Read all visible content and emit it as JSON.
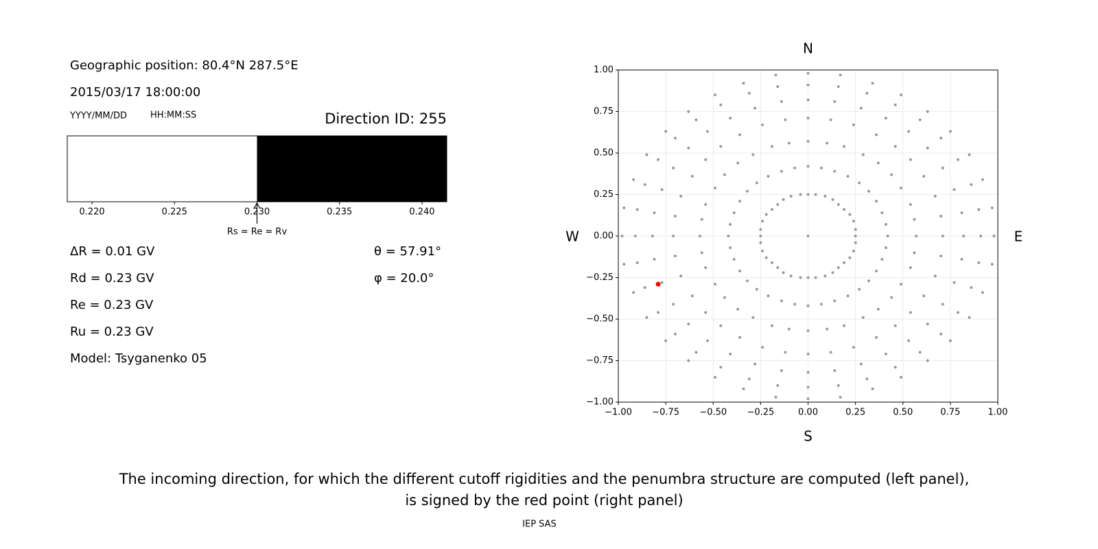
{
  "info": {
    "geo": "Geographic position: 80.4°N 287.5°E",
    "datetime": "2015/03/17 18:00:00",
    "date_format": "YYYY/MM/DD",
    "time_format": "HH:MM:SS",
    "direction": "Direction ID: 255",
    "dR": "ΔR = 0.01 GV",
    "Rd": "Rd = 0.23 GV",
    "Re": "Re = 0.23 GV",
    "Ru": "Ru = 0.23 GV",
    "theta": "θ = 57.91°",
    "phi": "φ = 20.0°",
    "model": "Model: Tsyganenko 05"
  },
  "caption": [
    "The incoming direction, for which the different cutoff rigidities and the penumbra structure are computed (left panel),",
    "is signed by the red point (right panel)"
  ],
  "footer": "IEP SAS",
  "chart_data": [
    {
      "type": "penumbra",
      "bins": [
        0.2185,
        0.23,
        0.2415
      ],
      "colors": [
        "#ffffff",
        "#000000"
      ],
      "xlim": [
        0.2185,
        0.2415
      ],
      "xticks": [
        {
          "value": 0.22,
          "label": "0.220"
        },
        {
          "value": 0.225,
          "label": "0.225"
        },
        {
          "value": 0.23,
          "label": "0.230"
        },
        {
          "value": 0.235,
          "label": "0.235"
        },
        {
          "value": 0.24,
          "label": "0.240"
        }
      ],
      "annotation": {
        "text": "Rs = Re = Rv",
        "x": 0.23
      }
    },
    {
      "type": "scatter",
      "xlim": [
        -1,
        1
      ],
      "ylim": [
        -1,
        1
      ],
      "grid": true,
      "compass": {
        "top": "N",
        "bottom": "S",
        "left": "W",
        "right": "E"
      },
      "xticks": [
        {
          "value": -1,
          "label": "−1.00"
        },
        {
          "value": -0.75,
          "label": "−0.75"
        },
        {
          "value": -0.5,
          "label": "−0.50"
        },
        {
          "value": -0.25,
          "label": "−0.25"
        },
        {
          "value": 0,
          "label": "0.00"
        },
        {
          "value": 0.25,
          "label": "0.25"
        },
        {
          "value": 0.5,
          "label": "0.50"
        },
        {
          "value": 0.75,
          "label": "0.75"
        },
        {
          "value": 1,
          "label": "1.00"
        }
      ],
      "yticks": [
        {
          "value": -1,
          "label": "−1.00"
        },
        {
          "value": -0.75,
          "label": "−0.75"
        },
        {
          "value": -0.5,
          "label": "−0.50"
        },
        {
          "value": -0.25,
          "label": "−0.25"
        },
        {
          "value": 0,
          "label": "0.00"
        },
        {
          "value": 0.25,
          "label": "0.25"
        },
        {
          "value": 0.5,
          "label": "0.50"
        },
        {
          "value": 0.75,
          "label": "0.75"
        },
        {
          "value": 1,
          "label": "1.00"
        }
      ],
      "series": [
        {
          "color": "#999999",
          "x": [
            0
          ],
          "values": [
            0
          ]
        },
        {
          "color": "#999999",
          "x": [
            0.25,
            0.25,
            0.24,
            0.22,
            0.19,
            0.16,
            0.13,
            0.09,
            0.04,
            0,
            -0.04,
            -0.09,
            -0.13,
            -0.16,
            -0.19,
            -0.22,
            -0.24,
            -0.25,
            -0.25,
            -0.25,
            -0.24,
            -0.22,
            -0.19,
            -0.16,
            -0.13,
            -0.09,
            -0.04,
            0,
            0.04,
            0.09,
            0.13,
            0.16,
            0.19,
            0.22,
            0.24,
            0.25
          ],
          "values": [
            0,
            0.04,
            0.09,
            0.13,
            0.16,
            0.19,
            0.22,
            0.24,
            0.25,
            0.25,
            0.25,
            0.24,
            0.22,
            0.19,
            0.16,
            0.13,
            0.09,
            0.04,
            0,
            -0.04,
            -0.09,
            -0.13,
            -0.16,
            -0.19,
            -0.22,
            -0.24,
            -0.25,
            -0.25,
            -0.25,
            -0.24,
            -0.22,
            -0.19,
            -0.16,
            -0.13,
            -0.09,
            -0.04
          ]
        },
        {
          "color": "#999999",
          "x": [
            0.42,
            0.41,
            0.39,
            0.36,
            0.32,
            0.27,
            0.21,
            0.14,
            0.07,
            0,
            -0.07,
            -0.14,
            -0.21,
            -0.27,
            -0.32,
            -0.36,
            -0.39,
            -0.41,
            -0.42,
            -0.41,
            -0.39,
            -0.36,
            -0.32,
            -0.27,
            -0.21,
            -0.14,
            -0.07,
            0,
            0.07,
            0.14,
            0.21,
            0.27,
            0.32,
            0.36,
            0.39,
            0.41
          ],
          "values": [
            0,
            0.07,
            0.14,
            0.21,
            0.27,
            0.32,
            0.36,
            0.39,
            0.41,
            0.42,
            0.41,
            0.39,
            0.36,
            0.32,
            0.27,
            0.21,
            0.14,
            0.07,
            0,
            -0.07,
            -0.14,
            -0.21,
            -0.27,
            -0.32,
            -0.36,
            -0.39,
            -0.41,
            -0.42,
            -0.41,
            -0.39,
            -0.36,
            -0.32,
            -0.27,
            -0.21,
            -0.14,
            -0.07
          ]
        },
        {
          "color": "#999999",
          "x": [
            0.57,
            0.56,
            0.54,
            0.49,
            0.44,
            0.37,
            0.29,
            0.19,
            0.1,
            0,
            -0.1,
            -0.19,
            -0.29,
            -0.37,
            -0.44,
            -0.49,
            -0.54,
            -0.56,
            -0.57,
            -0.56,
            -0.54,
            -0.49,
            -0.44,
            -0.37,
            -0.29,
            -0.19,
            -0.1,
            0,
            0.1,
            0.19,
            0.29,
            0.37,
            0.44,
            0.49,
            0.54,
            0.56
          ],
          "values": [
            0,
            0.1,
            0.19,
            0.29,
            0.37,
            0.44,
            0.49,
            0.54,
            0.56,
            0.57,
            0.56,
            0.54,
            0.49,
            0.44,
            0.37,
            0.29,
            0.19,
            0.1,
            0,
            -0.1,
            -0.19,
            -0.29,
            -0.37,
            -0.44,
            -0.49,
            -0.54,
            -0.56,
            -0.57,
            -0.56,
            -0.54,
            -0.49,
            -0.44,
            -0.37,
            -0.29,
            -0.19,
            -0.1
          ]
        },
        {
          "color": "#999999",
          "x": [
            0.71,
            0.7,
            0.67,
            0.61,
            0.54,
            0.46,
            0.36,
            0.24,
            0.12,
            0,
            -0.12,
            -0.24,
            -0.36,
            -0.46,
            -0.54,
            -0.61,
            -0.67,
            -0.7,
            -0.71,
            -0.7,
            -0.67,
            -0.61,
            -0.54,
            -0.46,
            -0.36,
            -0.24,
            -0.12,
            0,
            0.12,
            0.24,
            0.36,
            0.46,
            0.54,
            0.61,
            0.67,
            0.7
          ],
          "values": [
            0,
            0.12,
            0.24,
            0.36,
            0.46,
            0.54,
            0.61,
            0.67,
            0.7,
            0.71,
            0.7,
            0.67,
            0.61,
            0.54,
            0.46,
            0.36,
            0.24,
            0.12,
            0,
            -0.12,
            -0.24,
            -0.36,
            -0.46,
            -0.54,
            -0.61,
            -0.67,
            -0.7,
            -0.71,
            -0.7,
            -0.67,
            -0.61,
            -0.54,
            -0.46,
            -0.36,
            -0.24,
            -0.12
          ]
        },
        {
          "color": "#999999",
          "x": [
            0.82,
            0.81,
            0.77,
            0.71,
            0.63,
            0.53,
            0.41,
            0.28,
            0.14,
            0,
            -0.14,
            -0.28,
            -0.41,
            -0.53,
            -0.63,
            -0.71,
            -0.77,
            -0.81,
            -0.82,
            -0.81,
            -0.77,
            -0.71,
            -0.63,
            -0.53,
            -0.41,
            -0.28,
            -0.14,
            0,
            0.14,
            0.28,
            0.41,
            0.53,
            0.63,
            0.71,
            0.77,
            0.81
          ],
          "values": [
            0,
            0.14,
            0.28,
            0.41,
            0.53,
            0.63,
            0.71,
            0.77,
            0.81,
            0.82,
            0.81,
            0.77,
            0.71,
            0.63,
            0.53,
            0.41,
            0.28,
            0.14,
            0,
            -0.14,
            -0.28,
            -0.41,
            -0.53,
            -0.63,
            -0.71,
            -0.77,
            -0.81,
            -0.82,
            -0.81,
            -0.77,
            -0.71,
            -0.63,
            -0.53,
            -0.41,
            -0.28,
            -0.14
          ]
        },
        {
          "color": "#999999",
          "x": [
            0.91,
            0.9,
            0.86,
            0.79,
            0.7,
            0.59,
            0.46,
            0.31,
            0.16,
            0,
            -0.16,
            -0.31,
            -0.46,
            -0.59,
            -0.7,
            -0.79,
            -0.86,
            -0.9,
            -0.91,
            -0.9,
            -0.86,
            -0.79,
            -0.7,
            -0.59,
            -0.46,
            -0.31,
            -0.16,
            0,
            0.16,
            0.31,
            0.46,
            0.59,
            0.7,
            0.79,
            0.86,
            0.9
          ],
          "values": [
            0,
            0.16,
            0.31,
            0.46,
            0.59,
            0.7,
            0.79,
            0.86,
            0.9,
            0.91,
            0.9,
            0.86,
            0.79,
            0.7,
            0.59,
            0.46,
            0.31,
            0.16,
            0,
            -0.16,
            -0.31,
            -0.46,
            -0.59,
            -0.7,
            -0.79,
            -0.86,
            -0.9,
            -0.91,
            -0.9,
            -0.86,
            -0.79,
            -0.7,
            -0.59,
            -0.46,
            -0.31,
            -0.16
          ]
        },
        {
          "color": "#999999",
          "x": [
            0.98,
            0.97,
            0.92,
            0.85,
            0.75,
            0.63,
            0.49,
            0.34,
            0.17,
            0,
            -0.17,
            -0.34,
            -0.49,
            -0.63,
            -0.75,
            -0.85,
            -0.92,
            -0.97,
            -0.98,
            -0.97,
            -0.92,
            -0.85,
            -0.75,
            -0.63,
            -0.49,
            -0.34,
            -0.17,
            0,
            0.17,
            0.34,
            0.49,
            0.63,
            0.75,
            0.85,
            0.92,
            0.97
          ],
          "values": [
            0,
            0.17,
            0.34,
            0.49,
            0.63,
            0.75,
            0.85,
            0.92,
            0.97,
            0.98,
            0.97,
            0.92,
            0.85,
            0.75,
            0.63,
            0.49,
            0.34,
            0.17,
            0,
            -0.17,
            -0.34,
            -0.49,
            -0.63,
            -0.75,
            -0.85,
            -0.92,
            -0.97,
            -0.98,
            -0.97,
            -0.92,
            -0.85,
            -0.75,
            -0.63,
            -0.49,
            -0.34,
            -0.17
          ]
        },
        {
          "color": "#ff0000",
          "x": [
            -0.79
          ],
          "values": [
            -0.29
          ]
        }
      ]
    }
  ]
}
